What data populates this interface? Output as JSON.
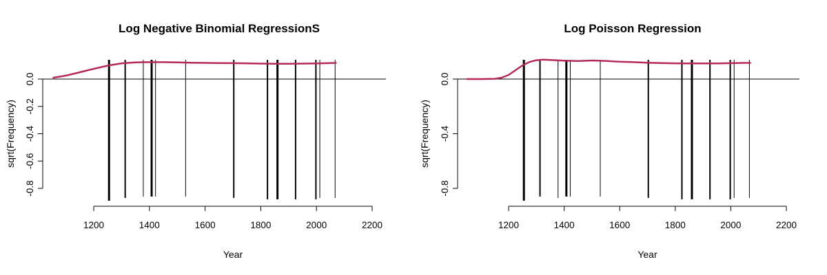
{
  "chart_data": [
    {
      "type": "line",
      "title": "Log Negative Binomial RegressionS",
      "xlabel": "Year",
      "ylabel": "sqrt(Frequency)",
      "xlim": [
        1050,
        2250
      ],
      "ylim": [
        -0.9,
        0.17
      ],
      "xticks": [
        1200,
        1400,
        1600,
        1800,
        2000,
        2200
      ],
      "yticks": [
        0.0,
        -0.2,
        -0.4,
        -0.6,
        -0.8
      ],
      "ytick_labels": [
        "0.0",
        "-0.2",
        "-0.4",
        "-0.6",
        "-0.8"
      ],
      "reference_line": 0,
      "curve_color": "#b5295a",
      "curve": {
        "x": [
          1055,
          1100,
          1150,
          1200,
          1250,
          1300,
          1350,
          1400,
          1450,
          1500,
          1550,
          1600,
          1650,
          1700,
          1750,
          1800,
          1850,
          1900,
          1950,
          2000,
          2050,
          2070
        ],
        "y": [
          0.01,
          0.025,
          0.05,
          0.075,
          0.098,
          0.115,
          0.122,
          0.124,
          0.124,
          0.122,
          0.12,
          0.118,
          0.117,
          0.116,
          0.115,
          0.113,
          0.112,
          0.112,
          0.113,
          0.114,
          0.117,
          0.118
        ]
      },
      "spikes": [
        {
          "x": 1255,
          "y": -0.89,
          "weight": 3
        },
        {
          "x": 1313,
          "y": -0.87,
          "weight": 2
        },
        {
          "x": 1378,
          "y": -0.86,
          "weight": 1
        },
        {
          "x": 1408,
          "y": -0.86,
          "weight": 3
        },
        {
          "x": 1422,
          "y": -0.86,
          "weight": 1
        },
        {
          "x": 1530,
          "y": -0.86,
          "weight": 1
        },
        {
          "x": 1703,
          "y": -0.87,
          "weight": 2
        },
        {
          "x": 1824,
          "y": -0.88,
          "weight": 2
        },
        {
          "x": 1860,
          "y": -0.88,
          "weight": 3
        },
        {
          "x": 1925,
          "y": -0.88,
          "weight": 2
        },
        {
          "x": 1998,
          "y": -0.88,
          "weight": 2
        },
        {
          "x": 2012,
          "y": -0.87,
          "weight": 1
        },
        {
          "x": 2067,
          "y": -0.87,
          "weight": 1
        }
      ]
    },
    {
      "type": "line",
      "title": "Log Poisson Regression",
      "xlabel": "Year",
      "ylabel": "sqrt(Frequency)",
      "xlim": [
        1050,
        2250
      ],
      "ylim": [
        -0.9,
        0.17
      ],
      "xticks": [
        1200,
        1400,
        1600,
        1800,
        2000,
        2200
      ],
      "yticks": [
        0.0,
        -0.4,
        -0.8
      ],
      "ytick_labels": [
        "0.0",
        "-0.4",
        "-0.8"
      ],
      "reference_line": 0,
      "curve_color": "#b5295a",
      "curve": {
        "x": [
          1050,
          1100,
          1150,
          1175,
          1200,
          1225,
          1250,
          1275,
          1300,
          1325,
          1350,
          1400,
          1450,
          1500,
          1550,
          1600,
          1650,
          1700,
          1750,
          1800,
          1850,
          1900,
          1950,
          2000,
          2050,
          2070
        ],
        "y": [
          0.0,
          0.0,
          0.002,
          0.01,
          0.03,
          0.065,
          0.1,
          0.125,
          0.138,
          0.142,
          0.14,
          0.135,
          0.132,
          0.136,
          0.133,
          0.127,
          0.124,
          0.12,
          0.117,
          0.115,
          0.114,
          0.114,
          0.114,
          0.116,
          0.118,
          0.118
        ]
      },
      "spikes": [
        {
          "x": 1255,
          "y": -0.89,
          "weight": 3
        },
        {
          "x": 1313,
          "y": -0.86,
          "weight": 2
        },
        {
          "x": 1378,
          "y": -0.87,
          "weight": 1
        },
        {
          "x": 1408,
          "y": -0.86,
          "weight": 3
        },
        {
          "x": 1422,
          "y": -0.86,
          "weight": 1
        },
        {
          "x": 1530,
          "y": -0.86,
          "weight": 1
        },
        {
          "x": 1703,
          "y": -0.87,
          "weight": 2
        },
        {
          "x": 1824,
          "y": -0.88,
          "weight": 2
        },
        {
          "x": 1860,
          "y": -0.88,
          "weight": 3
        },
        {
          "x": 1925,
          "y": -0.88,
          "weight": 2
        },
        {
          "x": 1998,
          "y": -0.88,
          "weight": 2
        },
        {
          "x": 2012,
          "y": -0.87,
          "weight": 1
        },
        {
          "x": 2067,
          "y": -0.87,
          "weight": 1
        }
      ]
    }
  ]
}
